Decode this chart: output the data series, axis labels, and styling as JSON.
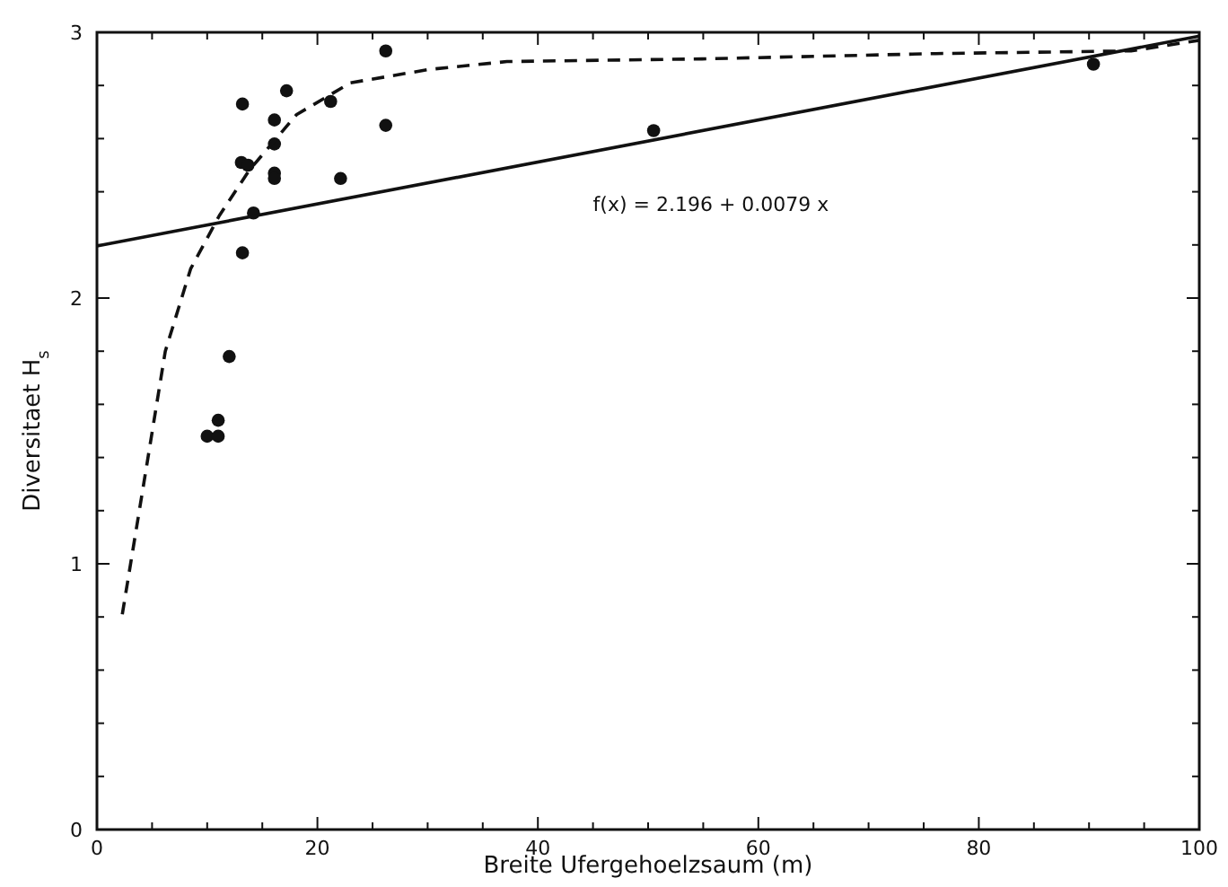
{
  "chart_data": {
    "type": "scatter",
    "xlabel": "Breite Ufergehoelzsaum (m)",
    "ylabel": "Diversitaet H$_{s}$",
    "xlim": [
      0,
      100
    ],
    "ylim": [
      0,
      3
    ],
    "xticks": [
      0,
      {
        "value": 5,
        "label": null
      },
      {
        "value": 10,
        "label": null
      },
      {
        "value": 15,
        "label": null
      },
      20,
      {
        "value": 25,
        "label": null
      },
      {
        "value": 30,
        "label": null
      },
      {
        "value": 35,
        "label": null
      },
      40,
      {
        "value": 45,
        "label": null
      },
      {
        "value": 50,
        "label": null
      },
      {
        "value": 55,
        "label": null
      },
      60,
      {
        "value": 65,
        "label": null
      },
      {
        "value": 70,
        "label": null
      },
      {
        "value": 75,
        "label": null
      },
      80,
      {
        "value": 85,
        "label": null
      },
      {
        "value": 90,
        "label": null
      },
      {
        "value": 95,
        "label": null
      },
      100
    ],
    "yticks": [
      0,
      {
        "value": 0.2,
        "label": null
      },
      {
        "value": 0.4,
        "label": null
      },
      {
        "value": 0.6,
        "label": null
      },
      {
        "value": 0.8,
        "label": null
      },
      1,
      {
        "value": 1.2,
        "label": null
      },
      {
        "value": 1.4,
        "label": null
      },
      {
        "value": 1.6,
        "label": null
      },
      {
        "value": 1.8,
        "label": null
      },
      2,
      {
        "value": 2.2,
        "label": null
      },
      {
        "value": 2.4,
        "label": null
      },
      {
        "value": 2.6,
        "label": null
      },
      {
        "value": 2.8,
        "label": null
      },
      3
    ],
    "grid": false,
    "series": [
      {
        "color": "#111111",
        "marker": "circle",
        "x": [
          26.2,
          13.2,
          17.2,
          21.2,
          16.1,
          26.2,
          16.1,
          13.1,
          13.7,
          16.1,
          16.1,
          22.1,
          14.2,
          13.2,
          12.0,
          11.0,
          10.0,
          11.0,
          50.5,
          90.4
        ],
        "values": [
          2.93,
          2.73,
          2.78,
          2.74,
          2.67,
          2.65,
          2.58,
          2.51,
          2.5,
          2.47,
          2.45,
          2.45,
          2.32,
          2.17,
          1.78,
          1.54,
          1.48,
          1.48,
          2.63,
          2.88
        ]
      },
      {
        "type": "line",
        "color": "#111111",
        "line_style": "solid",
        "x": [
          0,
          100
        ],
        "values": [
          2.196,
          2.986
        ]
      },
      {
        "type": "line",
        "color": "#111111",
        "line_style": "dashed",
        "x": [
          2.3,
          4.2,
          6.2,
          8.5,
          11.1,
          13.8,
          18.1,
          23.0,
          30.1,
          37.2,
          54.9,
          76.1,
          93.8,
          100
        ],
        "values": [
          0.81,
          1.29,
          1.8,
          2.11,
          2.31,
          2.48,
          2.69,
          2.81,
          2.86,
          2.89,
          2.9,
          2.92,
          2.93,
          2.97
        ]
      }
    ],
    "annotations": [
      "f(x) = 2.196 + 0.0079 x"
    ]
  }
}
